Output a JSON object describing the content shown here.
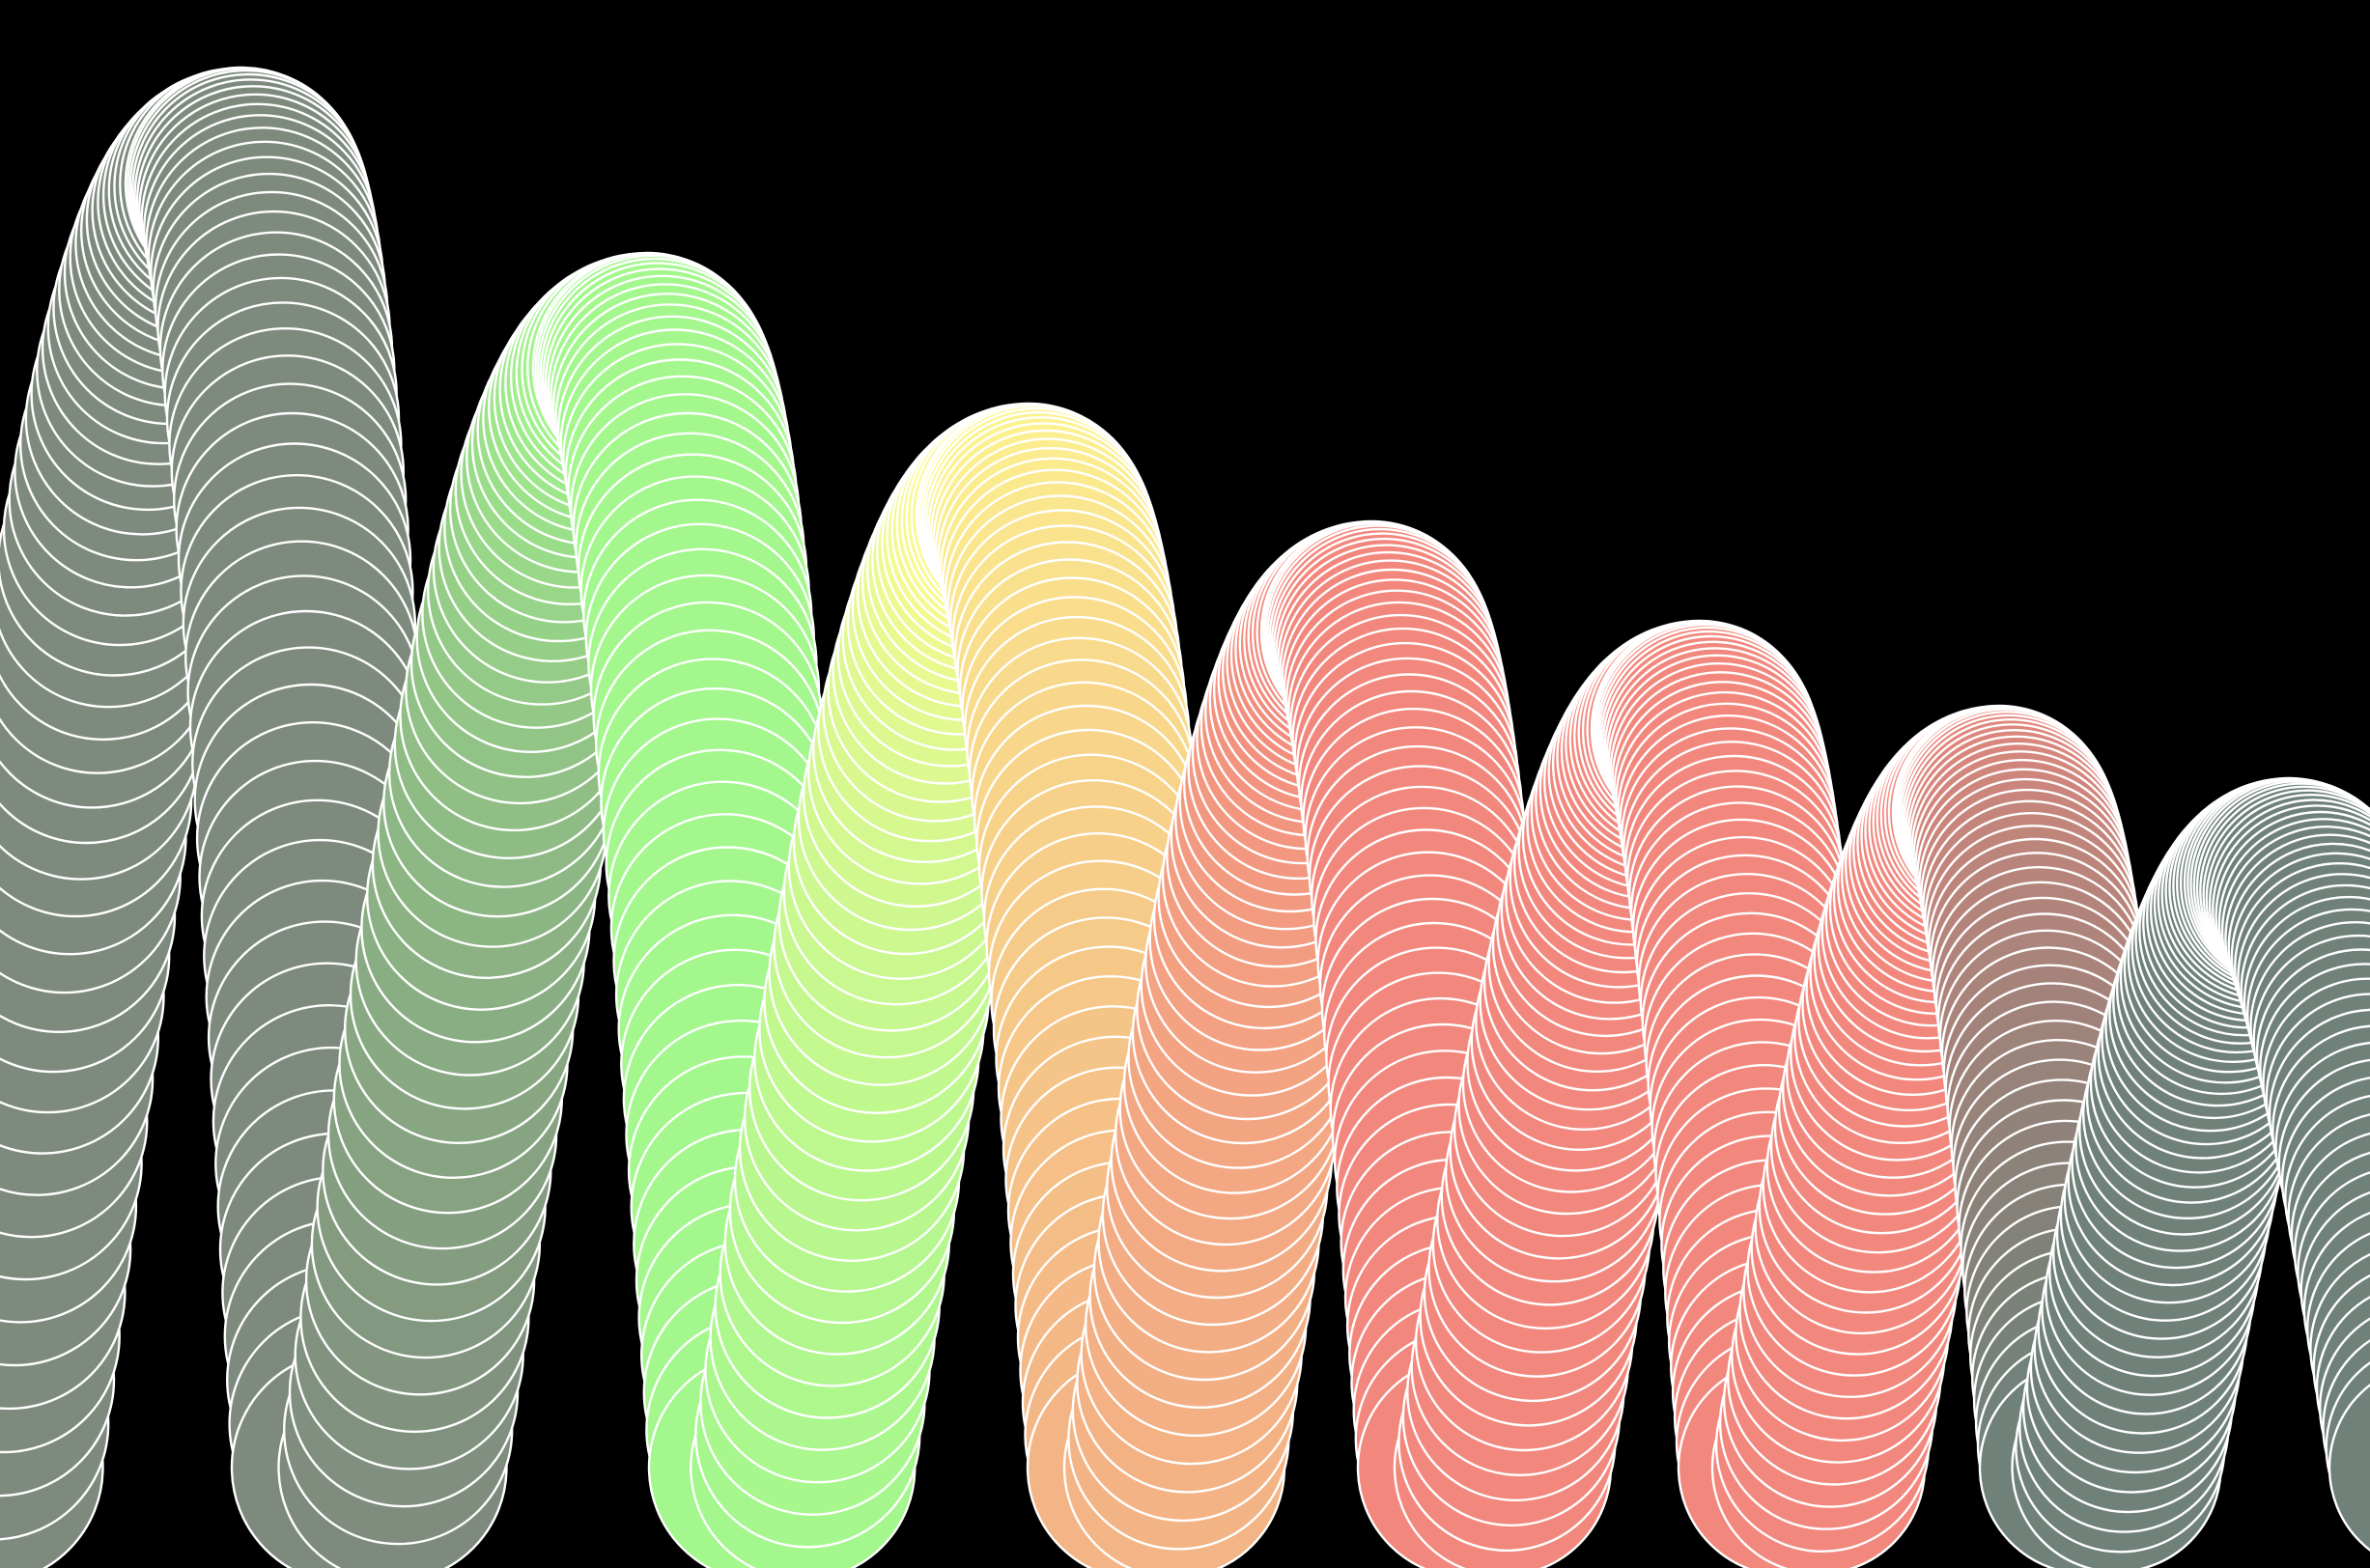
{
  "scene": {
    "background": "#000000",
    "outline_color": "#ffffff",
    "description_colors": {
      "gray": "#7e8a7e",
      "green": "#a3f78d",
      "yellow": "#fdf991",
      "orange": "#f3b585",
      "salmon": "#f2877d",
      "teal_gray": "#6f8179"
    }
  }
}
